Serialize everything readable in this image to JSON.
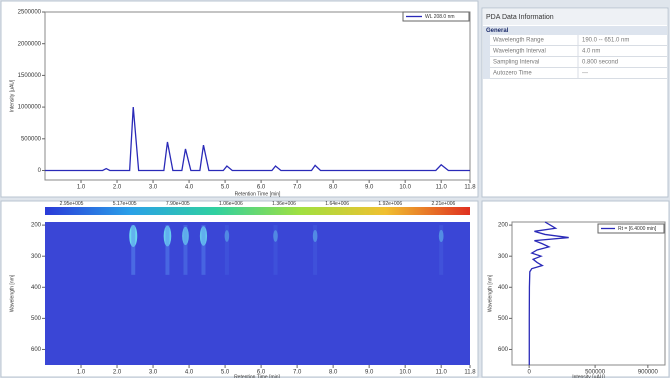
{
  "chromatogram": {
    "type": "line",
    "legend": "WL 208.0 nm",
    "x_label": "Retention Time [min]",
    "y_label": "Intensity [µAU]",
    "x": [
      0,
      1.6,
      1.7,
      1.8,
      2.35,
      2.45,
      2.6,
      3.3,
      3.4,
      3.55,
      3.8,
      3.9,
      4.05,
      4.3,
      4.4,
      4.55,
      4.95,
      5.05,
      5.2,
      6.3,
      6.4,
      6.55,
      7.4,
      7.5,
      7.65,
      10.85,
      11,
      11.2,
      11.8
    ],
    "values": [
      0,
      0,
      30000,
      0,
      0,
      1000000,
      0,
      0,
      450000,
      0,
      0,
      340000,
      0,
      0,
      400000,
      0,
      0,
      70000,
      0,
      0,
      70000,
      0,
      0,
      80000,
      0,
      0,
      90000,
      0,
      0
    ],
    "color": "#2a2ab8",
    "xlim": [
      0,
      11.8
    ],
    "ylim": [
      -150000,
      2500000
    ],
    "xticks": [
      {
        "value": 1,
        "label": "1.0"
      },
      {
        "value": 2,
        "label": "2.0"
      },
      {
        "value": 3,
        "label": "3.0"
      },
      {
        "value": 4,
        "label": "4.0"
      },
      {
        "value": 5,
        "label": "5.0"
      },
      {
        "value": 6,
        "label": "6.0"
      },
      {
        "value": 7,
        "label": "7.0"
      },
      {
        "value": 8,
        "label": "8.0"
      },
      {
        "value": 9,
        "label": "9.0"
      },
      {
        "value": 10,
        "label": "10.0"
      },
      {
        "value": 11,
        "label": "11.0"
      },
      11.8
    ],
    "yticks": [
      0,
      500000,
      1000000,
      1500000,
      2000000,
      2500000
    ]
  },
  "pda_info": {
    "title": "PDA Data Information",
    "section": "General",
    "rows": [
      [
        "Wavelength Range",
        "190.0 -- 651.0 nm"
      ],
      [
        "Wavelength Interval",
        "4.0 nm"
      ],
      [
        "Sampling Interval",
        "0.800 second"
      ],
      [
        "Autozero Time",
        "---"
      ]
    ]
  },
  "contour": {
    "colorbar_labels": [
      "2.95e+005",
      "5.17e+005",
      "7.90e+005",
      "1.06e+006",
      "1.36e+006",
      "1.64e+006",
      "1.92e+006",
      "2.21e+006"
    ],
    "x_label": "Retention Time [min]",
    "y_label": "Wavelength [nm]",
    "ylim": [
      190,
      650
    ],
    "yticks": [
      200,
      300,
      400,
      500,
      600
    ]
  },
  "spectrum": {
    "type": "line",
    "legend": "Rt = [6.4000 min]",
    "x_label": "Intensity [µAU]",
    "y_label": "Wavelength [nm]",
    "color": "#2a2ab8",
    "wavelengths": [
      190,
      200,
      210,
      220,
      230,
      240,
      250,
      260,
      270,
      280,
      290,
      300,
      310,
      320,
      330,
      340,
      350,
      400,
      500,
      600,
      650
    ],
    "values": [
      120000,
      160000,
      200000,
      40000,
      120000,
      300000,
      40000,
      100000,
      150000,
      60000,
      20000,
      90000,
      30000,
      60000,
      100000,
      20000,
      5000,
      2000,
      1000,
      1000,
      1000
    ],
    "xlim": [
      -130000,
      1030000
    ],
    "xticks": [
      0,
      500000,
      900000
    ],
    "ylim": [
      190,
      650
    ],
    "yticks": [
      200,
      300,
      400,
      500,
      600
    ]
  }
}
